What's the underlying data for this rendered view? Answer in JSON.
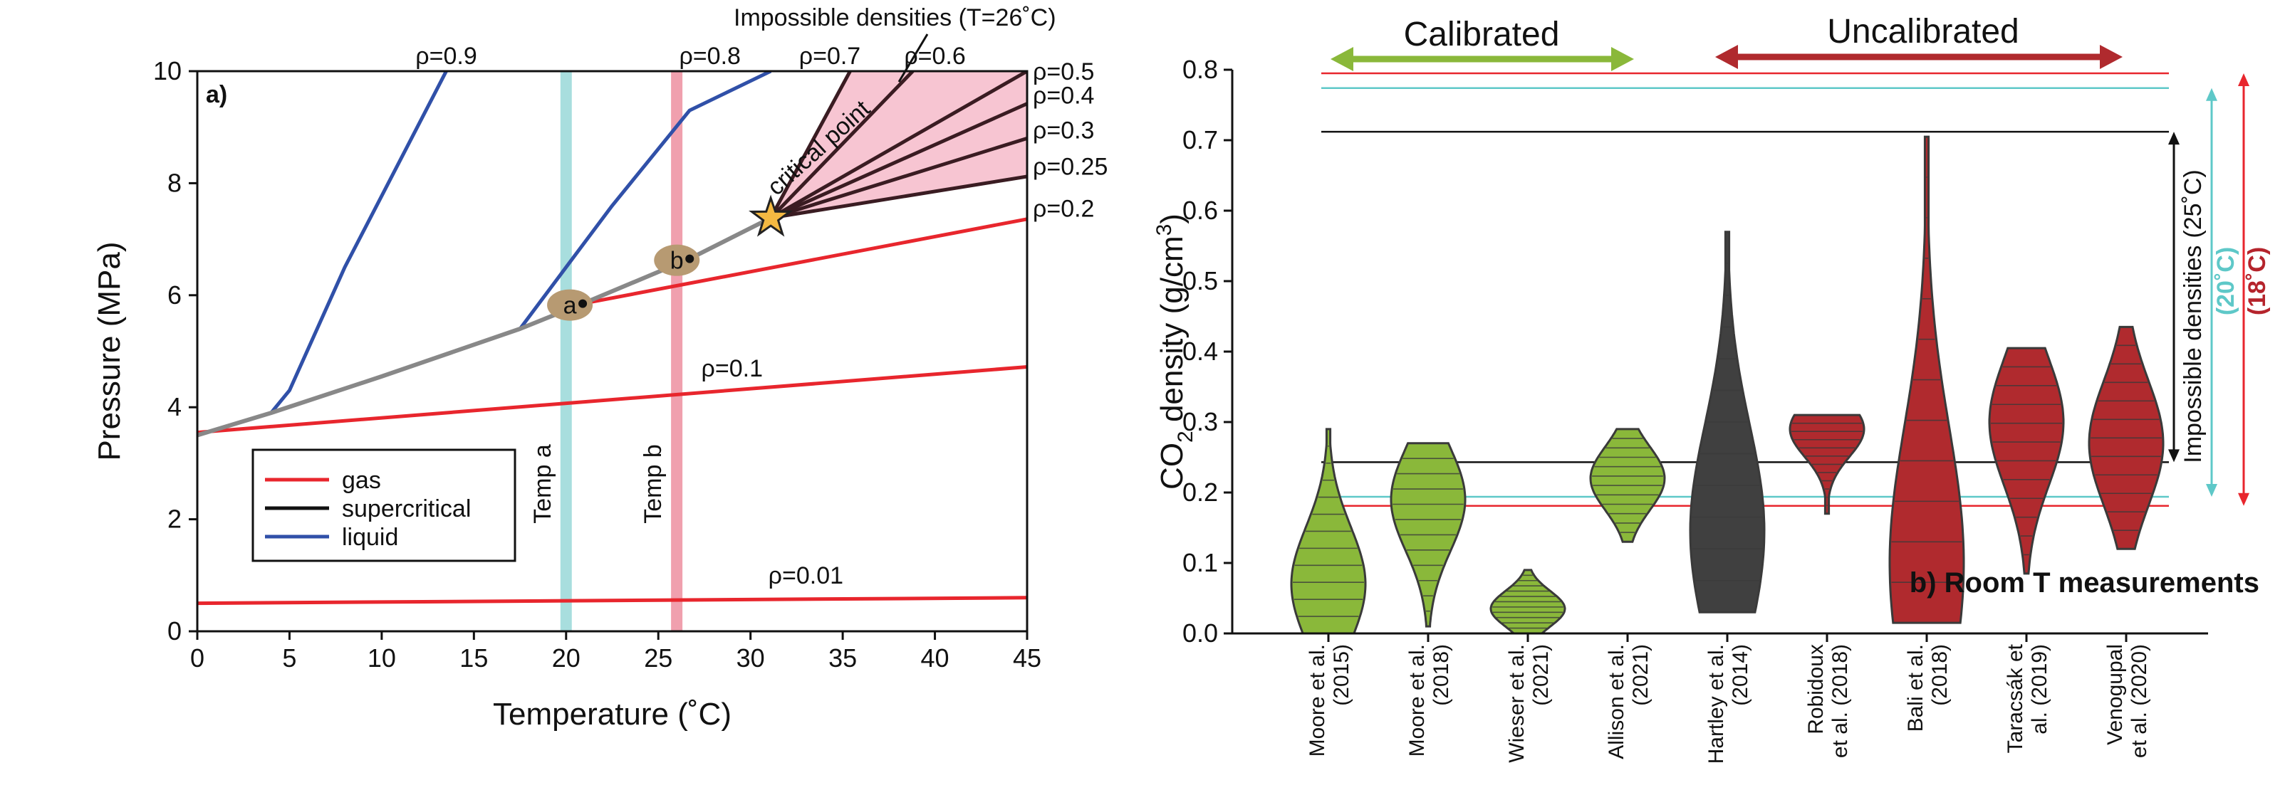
{
  "chart_data": [
    {
      "type": "line",
      "panel_label": "a)",
      "xlabel": "Temperature (˚C)",
      "ylabel": "Pressure (MPa)",
      "xlim": [
        0,
        45
      ],
      "ylim": [
        0,
        10
      ],
      "xticks": [
        "0",
        "5",
        "10",
        "15",
        "20",
        "25",
        "30",
        "35",
        "40",
        "45"
      ],
      "yticks": [
        "0",
        "2",
        "4",
        "6",
        "8",
        "10"
      ],
      "legend": {
        "placement": "lower-left",
        "entries": [
          {
            "label": "gas",
            "color": "#e8262d"
          },
          {
            "label": "supercritical",
            "color": "#111111"
          },
          {
            "label": "liquid",
            "color": "#3050a8"
          }
        ]
      },
      "impossible_label": "Impossible densities (T=26˚C)",
      "critical_point": {
        "label": "critical point",
        "x": 31.1,
        "y": 7.38
      },
      "temp_bands": [
        {
          "label": "Temp a",
          "x": 20,
          "color": "#a8dede"
        },
        {
          "label": "Temp b",
          "x": 26,
          "color": "#f0a0ae"
        }
      ],
      "state_points": [
        {
          "label": "a",
          "x": 20.9,
          "y": 5.85
        },
        {
          "label": "b",
          "x": 26.7,
          "y": 6.65
        }
      ],
      "saturation_curve": {
        "color": "#888888",
        "x": [
          0,
          4,
          10,
          17.5,
          20.9,
          26.7,
          31.1
        ],
        "y": [
          3.5,
          3.9,
          4.55,
          5.4,
          5.85,
          6.65,
          7.38
        ]
      },
      "series": [
        {
          "label": "ρ=0.01",
          "phase": "gas",
          "x": [
            0,
            45
          ],
          "y": [
            0.5,
            0.6
          ]
        },
        {
          "label": "ρ=0.1",
          "phase": "gas",
          "x": [
            0,
            45
          ],
          "y": [
            3.55,
            4.72
          ]
        },
        {
          "label": "ρ=0.2",
          "phase": "gas",
          "x": [
            20.9,
            45
          ],
          "y": [
            5.85,
            7.36
          ]
        },
        {
          "label": "ρ=0.25",
          "phase": "supercritical",
          "x": [
            31.1,
            45
          ],
          "y": [
            7.38,
            8.12
          ]
        },
        {
          "label": "ρ=0.3",
          "phase": "supercritical",
          "x": [
            31.1,
            45
          ],
          "y": [
            7.38,
            8.8
          ]
        },
        {
          "label": "ρ=0.4",
          "phase": "supercritical",
          "x": [
            31.1,
            45
          ],
          "y": [
            7.38,
            9.42
          ]
        },
        {
          "label": "ρ=0.5",
          "phase": "supercritical",
          "x": [
            31.1,
            45
          ],
          "y": [
            7.38,
            10.0
          ]
        },
        {
          "label": "ρ=0.6",
          "phase": "supercritical",
          "x": [
            31.1,
            38.8
          ],
          "y": [
            7.38,
            10.0
          ]
        },
        {
          "label": "ρ=0.7",
          "phase": "supercritical",
          "x": [
            31.1,
            35.4
          ],
          "y": [
            7.38,
            10.0
          ]
        },
        {
          "label": "ρ=0.8",
          "phase": "liquid",
          "x": [
            17.5,
            20,
            22.5,
            26.7,
            31.1
          ],
          "y": [
            5.4,
            6.5,
            7.6,
            9.3,
            10.0
          ]
        },
        {
          "label": "ρ=0.9",
          "phase": "liquid",
          "x": [
            4,
            5,
            8,
            13.5
          ],
          "y": [
            3.9,
            4.3,
            6.5,
            10.0
          ]
        }
      ]
    },
    {
      "type": "violin",
      "panel_label": "b) Room T measurements",
      "ylabel_main": "CO",
      "ylabel_sub": "2",
      "ylabel_rest": " density (g/cm",
      "ylabel_sup": "3",
      "ylabel_end": ")",
      "ylim": [
        0,
        0.8
      ],
      "yticks": [
        "0.0",
        "0.1",
        "0.2",
        "0.3",
        "0.4",
        "0.5",
        "0.6",
        "0.7",
        "0.8"
      ],
      "group_labels": {
        "calibrated": "Calibrated",
        "uncalibrated": "Uncalibrated"
      },
      "impossible_label": "Impossible densities",
      "temp_labels": [
        {
          "text": "(25˚C)",
          "color": "#111111"
        },
        {
          "text": "(20˚C)",
          "color": "#5ec8c8"
        },
        {
          "text": "(18˚C)",
          "color": "#b5242c"
        }
      ],
      "reference_lines": [
        {
          "temp": "25˚C",
          "color": "#111111",
          "lower": 0.243,
          "upper": 0.712
        },
        {
          "temp": "20˚C",
          "color": "#5ec8c8",
          "lower": 0.194,
          "upper": 0.774
        },
        {
          "temp": "18˚C",
          "color": "#e8262d",
          "lower": 0.181,
          "upper": 0.795
        }
      ],
      "colors": {
        "calibrated": "#8ab83a",
        "uncalibrated": "#b02a2e",
        "other": "#404040"
      },
      "categories": [
        {
          "label": [
            "Moore et al.",
            "(2015)"
          ],
          "group": "calibrated",
          "min": 0.0,
          "max": 0.29,
          "peak": 0.07
        },
        {
          "label": [
            "Moore et al.",
            "(2018)"
          ],
          "group": "calibrated",
          "min": 0.01,
          "max": 0.27,
          "peak": 0.19
        },
        {
          "label": [
            "Wieser et al.",
            "(2021)"
          ],
          "group": "calibrated",
          "min": 0.0,
          "max": 0.09,
          "peak": 0.035
        },
        {
          "label": [
            "Allison et al.",
            "(2021)"
          ],
          "group": "calibrated",
          "min": 0.13,
          "max": 0.29,
          "peak": 0.22
        },
        {
          "label": [
            "Hartley et al.",
            "(2014)"
          ],
          "group": "other",
          "min": 0.03,
          "max": 0.57,
          "peak": 0.145
        },
        {
          "label": [
            "Robidoux",
            "et al. (2018)"
          ],
          "group": "uncalibrated",
          "min": 0.17,
          "max": 0.31,
          "peak": 0.29
        },
        {
          "label": [
            "Bali et al.",
            "(2018)"
          ],
          "group": "uncalibrated",
          "min": 0.015,
          "max": 0.705,
          "peak": 0.1
        },
        {
          "label": [
            "Taracsák et",
            "al. (2019)"
          ],
          "group": "uncalibrated",
          "min": 0.085,
          "max": 0.405,
          "peak": 0.3
        },
        {
          "label": [
            "Venogupal",
            "et al. (2020)"
          ],
          "group": "uncalibrated",
          "min": 0.12,
          "max": 0.435,
          "peak": 0.27
        }
      ]
    }
  ]
}
